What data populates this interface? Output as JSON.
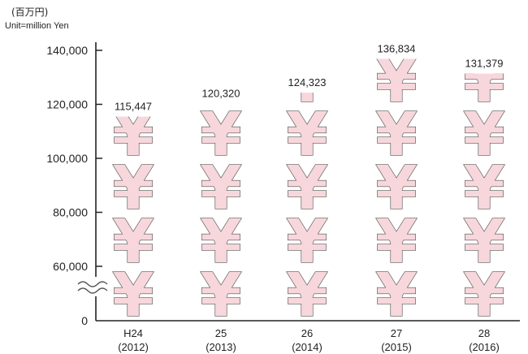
{
  "chart_data": {
    "type": "bar",
    "unit_label_jp": "(百万円)",
    "unit_label_en": "Unit=million Yen",
    "categories": [
      {
        "label": "H24",
        "year": "(2012)"
      },
      {
        "label": "25",
        "year": "(2013)"
      },
      {
        "label": "26",
        "year": "(2014)"
      },
      {
        "label": "27",
        "year": "(2015)"
      },
      {
        "label": "28",
        "year": "(2016)"
      }
    ],
    "values": [
      115447,
      120320,
      124323,
      136834,
      131379
    ],
    "value_labels": [
      "115,447",
      "120,320",
      "124,323",
      "136,834",
      "131,379"
    ],
    "y_ticks": [
      "140,000",
      "120,000",
      "100,000",
      "80,000",
      "60,000",
      "0"
    ],
    "y_tick_values": [
      140000,
      120000,
      100000,
      80000,
      60000,
      0
    ],
    "ylim": [
      0,
      140000
    ],
    "axis_break": "between 0 and 60,000",
    "bar_symbol": "¥",
    "bar_color": "#f7d7dc",
    "grid": false
  }
}
